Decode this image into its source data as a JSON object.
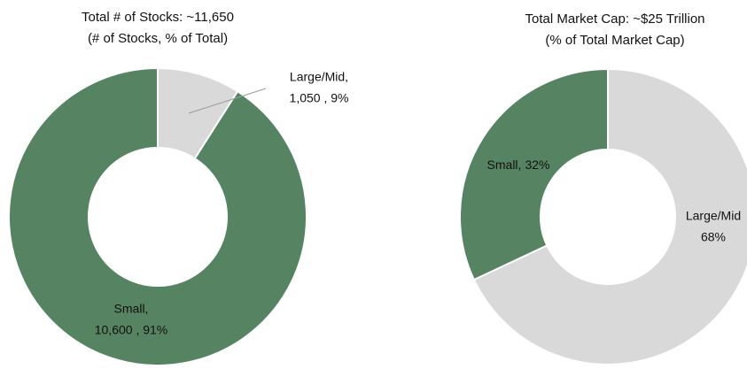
{
  "chart_data": [
    {
      "type": "donut",
      "title": "Total # of Stocks: ~11,650",
      "subtitle": "(# of Stocks, % of Total)",
      "categories": [
        "Large/Mid,",
        "Small,"
      ],
      "values": [
        1050,
        10600
      ],
      "value_labels": [
        "1,050 , 9%",
        "10,600 , 91%"
      ],
      "colors": [
        "#d9d9d9",
        "#568462"
      ]
    },
    {
      "type": "donut",
      "title": "Total Market Cap: ~$25 Trillion",
      "subtitle": "(% of Total Market Cap)",
      "categories": [
        "Large/Mid",
        "Small,"
      ],
      "values": [
        68,
        32
      ],
      "value_labels": [
        "68%",
        "32%"
      ],
      "colors": [
        "#d9d9d9",
        "#568462"
      ]
    }
  ]
}
